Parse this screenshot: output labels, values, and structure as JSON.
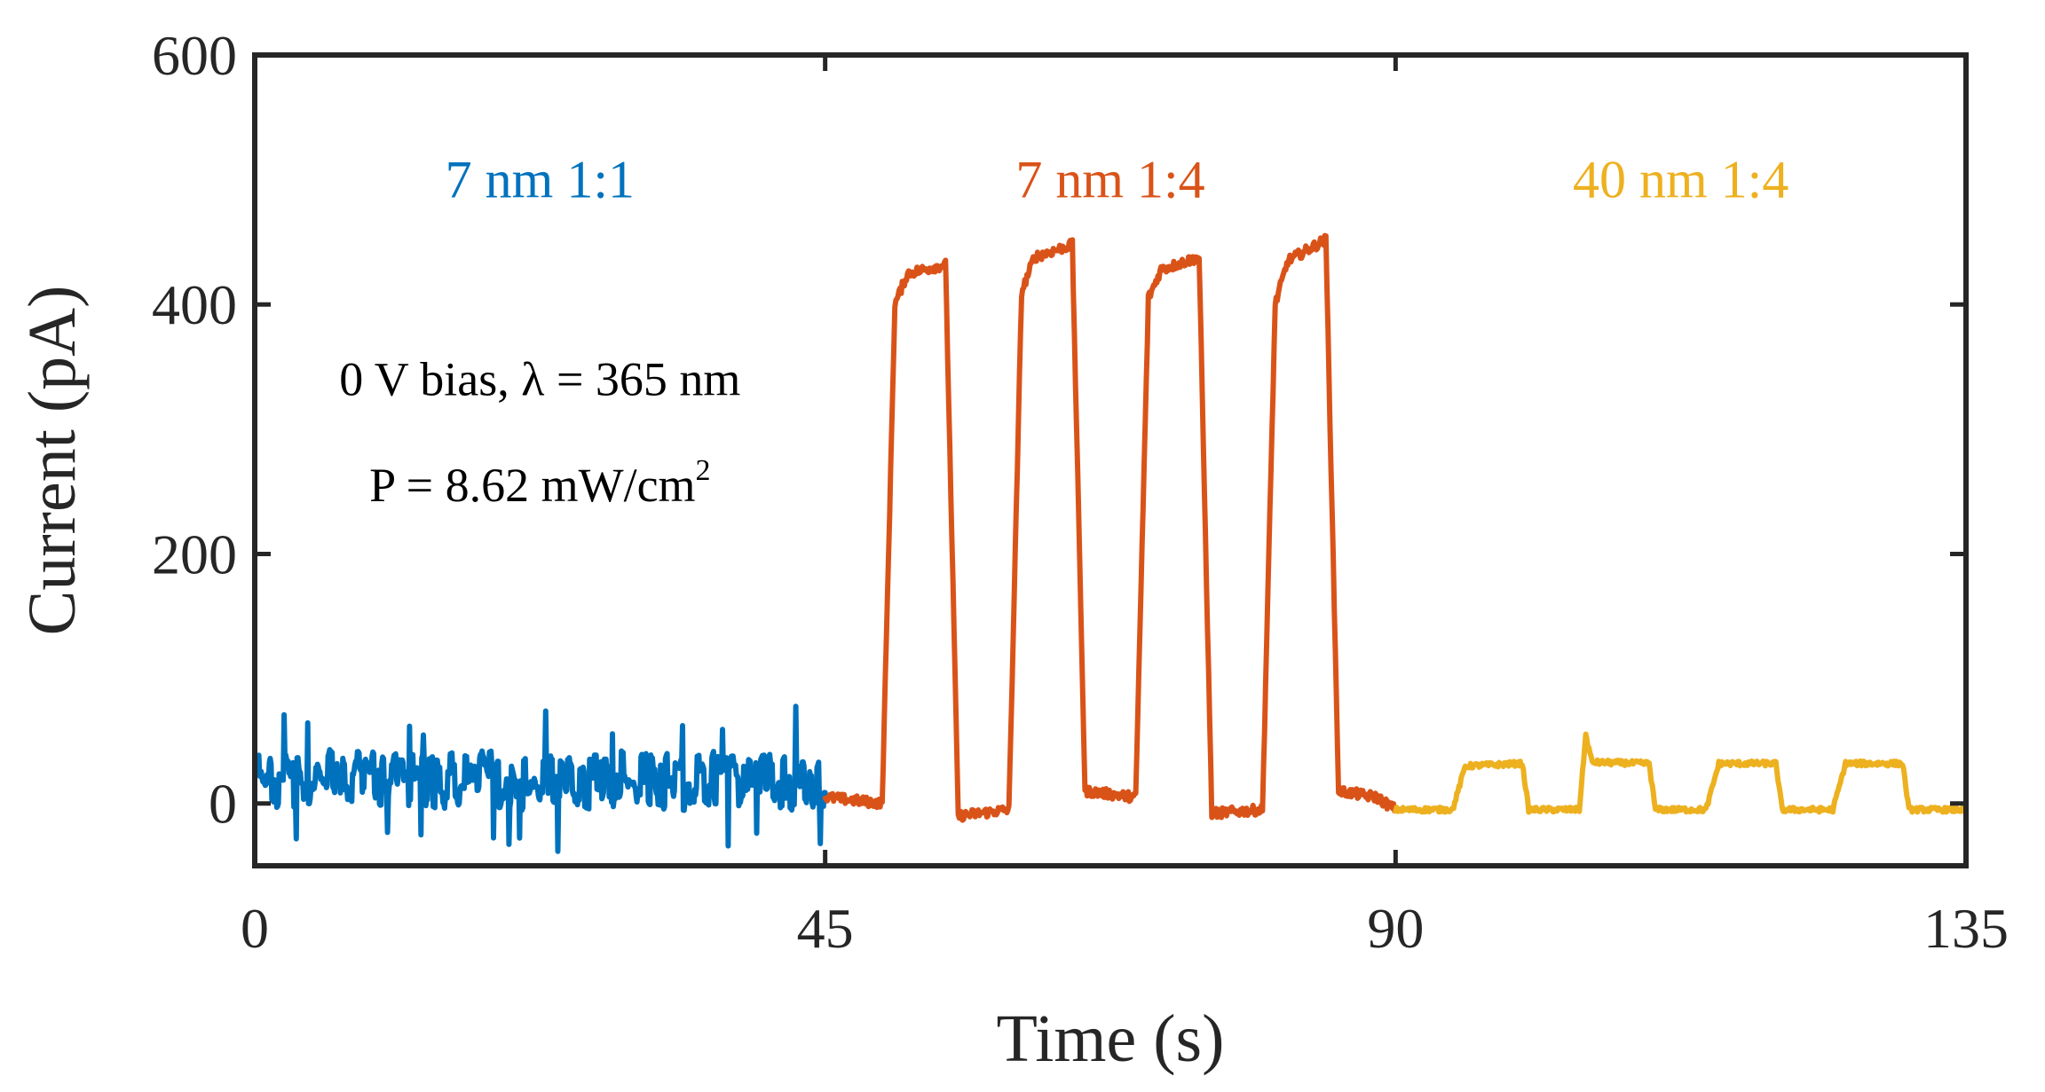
{
  "chart_data": {
    "type": "line",
    "title": "",
    "xlabel": "Time (s)",
    "ylabel": "Current (pA)",
    "xlim": [
      0,
      135
    ],
    "ylim": [
      -50,
      600
    ],
    "xticks": [
      0,
      45,
      90,
      135
    ],
    "yticks": [
      0,
      200,
      400,
      600
    ],
    "xtick_labels": [
      "0",
      "45",
      "90",
      "135"
    ],
    "ytick_labels": [
      "0",
      "200",
      "400",
      "600"
    ],
    "grid": false,
    "annotation": {
      "line1": "0 V bias, λ = 365 nm",
      "line2_base": "P = 8.62 mW/cm",
      "line2_sup": "2"
    },
    "series": [
      {
        "name": "7 nm 1:1",
        "color": "#0072BD",
        "style": "noisy",
        "points": [
          [
            0,
            20
          ],
          [
            45,
            18
          ]
        ],
        "noise_amplitude": 22,
        "spike_count": 14
      },
      {
        "name": "7 nm 1:4",
        "color": "#D95319",
        "style": "pulsed",
        "points": [
          [
            45,
            5
          ],
          [
            49.5,
            0
          ],
          [
            50.5,
            400
          ],
          [
            51.5,
            425
          ],
          [
            54.5,
            432
          ],
          [
            55.5,
            -10
          ],
          [
            59.5,
            -5
          ],
          [
            60.5,
            410
          ],
          [
            61.5,
            438
          ],
          [
            64.5,
            448
          ],
          [
            65.5,
            10
          ],
          [
            69.5,
            5
          ],
          [
            70.5,
            405
          ],
          [
            71.5,
            428
          ],
          [
            74.5,
            438
          ],
          [
            75.5,
            -8
          ],
          [
            79.5,
            -5
          ],
          [
            80.5,
            400
          ],
          [
            81.5,
            435
          ],
          [
            84.5,
            452
          ],
          [
            85.5,
            10
          ],
          [
            88.5,
            5
          ],
          [
            90,
            -5
          ]
        ],
        "noise_amplitude": 4
      },
      {
        "name": "40 nm 1:4",
        "color": "#EDB120",
        "style": "pulsed",
        "points": [
          [
            90,
            -5
          ],
          [
            94.5,
            -5
          ],
          [
            95.5,
            30
          ],
          [
            100,
            32
          ],
          [
            100.5,
            -5
          ],
          [
            104.5,
            -5
          ],
          [
            105,
            55
          ],
          [
            105.5,
            33
          ],
          [
            110,
            32
          ],
          [
            110.5,
            -5
          ],
          [
            114.5,
            -5
          ],
          [
            115.5,
            32
          ],
          [
            120,
            32
          ],
          [
            120.5,
            -5
          ],
          [
            124.5,
            -5
          ],
          [
            125.5,
            32
          ],
          [
            130,
            32
          ],
          [
            130.5,
            -5
          ],
          [
            135,
            -5
          ]
        ],
        "noise_amplitude": 2
      }
    ]
  }
}
